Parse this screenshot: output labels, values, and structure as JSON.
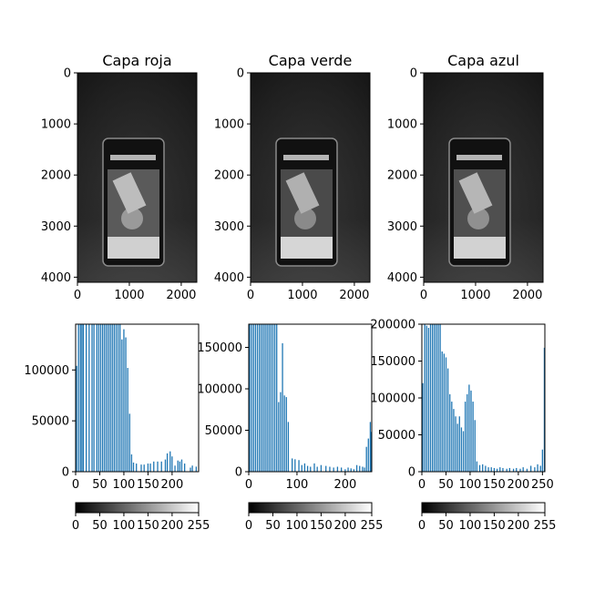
{
  "panels": [
    {
      "title": "Capa roja"
    },
    {
      "title": "Capa verde"
    },
    {
      "title": "Capa azul"
    }
  ],
  "colors": {
    "bar": "#1f77b4",
    "axis": "#000000",
    "background": "#ffffff",
    "photo_dark": "#1a1a1a",
    "photo_light": "#d9d9d9"
  },
  "chart_data": [
    {
      "type": "image",
      "title": "Capa roja",
      "xlim": [
        0,
        2300
      ],
      "ylim": [
        4100,
        0
      ],
      "xticks": [
        "0",
        "1000",
        "2000"
      ],
      "yticks": [
        "0",
        "1000",
        "2000",
        "3000",
        "4000"
      ],
      "xtick_values": [
        0,
        1000,
        2000
      ],
      "ytick_values": [
        0,
        1000,
        2000,
        3000,
        4000
      ]
    },
    {
      "type": "image",
      "title": "Capa verde",
      "xlim": [
        0,
        2300
      ],
      "ylim": [
        4100,
        0
      ],
      "xticks": [
        "0",
        "1000",
        "2000"
      ],
      "yticks": [
        "0",
        "1000",
        "2000",
        "3000",
        "4000"
      ],
      "xtick_values": [
        0,
        1000,
        2000
      ],
      "ytick_values": [
        0,
        1000,
        2000,
        3000,
        4000
      ]
    },
    {
      "type": "image",
      "title": "Capa azul",
      "xlim": [
        0,
        2300
      ],
      "ylim": [
        4100,
        0
      ],
      "xticks": [
        "0",
        "1000",
        "2000"
      ],
      "yticks": [
        "0",
        "1000",
        "2000",
        "3000",
        "4000"
      ],
      "xtick_values": [
        0,
        1000,
        2000
      ],
      "ytick_values": [
        0,
        1000,
        2000,
        3000,
        4000
      ]
    },
    {
      "type": "bar",
      "xlim": [
        0,
        255
      ],
      "ylim": [
        0,
        145000
      ],
      "xticks": [
        "0",
        "50",
        "100",
        "150",
        "200"
      ],
      "xtick_values": [
        0,
        50,
        100,
        150,
        200
      ],
      "yticks": [
        "0",
        "50000",
        "100000"
      ],
      "ytick_values": [
        0,
        50000,
        100000
      ],
      "x": [
        2,
        6,
        10,
        13,
        16,
        22,
        28,
        34,
        38,
        44,
        48,
        52,
        56,
        60,
        64,
        68,
        72,
        76,
        80,
        84,
        88,
        92,
        96,
        100,
        104,
        108,
        112,
        116,
        120,
        126,
        136,
        142,
        150,
        155,
        162,
        170,
        178,
        186,
        190,
        196,
        200,
        206,
        212,
        216,
        220,
        226,
        238,
        242,
        250
      ],
      "values": [
        104000,
        145000,
        145000,
        145000,
        145000,
        145000,
        145000,
        145000,
        145000,
        145000,
        145000,
        145000,
        145000,
        145000,
        145000,
        145000,
        145000,
        145000,
        145000,
        145000,
        145000,
        145000,
        130000,
        140000,
        132000,
        102000,
        57000,
        17000,
        9000,
        8000,
        7000,
        7000,
        8000,
        8000,
        10000,
        10000,
        10000,
        12000,
        18000,
        20000,
        15000,
        6000,
        11000,
        10000,
        12000,
        8000,
        4000,
        6000,
        5000
      ]
    },
    {
      "type": "bar",
      "xlim": [
        0,
        255
      ],
      "ylim": [
        0,
        178000
      ],
      "xticks": [
        "0",
        "100",
        "200"
      ],
      "xtick_values": [
        0,
        100,
        200
      ],
      "yticks": [
        "0",
        "50000",
        "100000",
        "150000"
      ],
      "ytick_values": [
        0,
        50000,
        100000,
        150000
      ],
      "x": [
        2,
        6,
        10,
        14,
        18,
        22,
        26,
        30,
        34,
        38,
        42,
        46,
        50,
        54,
        58,
        62,
        66,
        70,
        74,
        78,
        82,
        90,
        96,
        104,
        110,
        116,
        122,
        128,
        136,
        142,
        150,
        160,
        168,
        176,
        184,
        192,
        200,
        206,
        212,
        218,
        224,
        230,
        236,
        240,
        244,
        248,
        252,
        254
      ],
      "values": [
        178000,
        178000,
        178000,
        178000,
        178000,
        178000,
        178000,
        178000,
        178000,
        178000,
        178000,
        178000,
        178000,
        178000,
        178000,
        84000,
        96000,
        155000,
        92000,
        90000,
        60000,
        16000,
        15000,
        14000,
        8000,
        10000,
        7000,
        6000,
        10000,
        6000,
        8000,
        7000,
        6000,
        5000,
        6000,
        5000,
        3000,
        5000,
        4000,
        3000,
        8000,
        7000,
        6000,
        5000,
        30000,
        40000,
        60000,
        48000
      ]
    },
    {
      "type": "bar",
      "xlim": [
        0,
        255
      ],
      "ylim": [
        0,
        200000
      ],
      "xticks": [
        "0",
        "50",
        "100",
        "150",
        "200",
        "250"
      ],
      "xtick_values": [
        0,
        50,
        100,
        150,
        200,
        250
      ],
      "yticks": [
        "0",
        "50000",
        "100000",
        "150000",
        "200000"
      ],
      "ytick_values": [
        0,
        50000,
        100000,
        150000,
        200000
      ],
      "x": [
        2,
        6,
        10,
        14,
        18,
        22,
        26,
        30,
        34,
        38,
        42,
        46,
        50,
        54,
        58,
        62,
        66,
        70,
        74,
        78,
        82,
        86,
        90,
        94,
        98,
        102,
        106,
        110,
        114,
        120,
        126,
        132,
        138,
        144,
        150,
        156,
        162,
        168,
        176,
        182,
        190,
        196,
        204,
        210,
        218,
        226,
        234,
        240,
        246,
        250,
        254
      ],
      "values": [
        120000,
        200000,
        198000,
        195000,
        200000,
        200000,
        200000,
        200000,
        200000,
        200000,
        163000,
        160000,
        155000,
        140000,
        105000,
        95000,
        85000,
        75000,
        65000,
        75000,
        60000,
        55000,
        95000,
        105000,
        118000,
        110000,
        95000,
        70000,
        14000,
        9000,
        10000,
        8000,
        6000,
        6000,
        5000,
        4000,
        6000,
        5000,
        4000,
        5000,
        4000,
        5000,
        4000,
        6000,
        4000,
        8000,
        6000,
        10000,
        8000,
        30000,
        168000
      ]
    },
    {
      "type": "colorbar",
      "cmap": "gray",
      "range": [
        0,
        255
      ],
      "ticks": [
        "0",
        "50",
        "100",
        "150",
        "200",
        "255"
      ],
      "tick_values": [
        0,
        50,
        100,
        150,
        200,
        255
      ]
    },
    {
      "type": "colorbar",
      "cmap": "gray",
      "range": [
        0,
        255
      ],
      "ticks": [
        "0",
        "50",
        "100",
        "150",
        "200",
        "255"
      ],
      "tick_values": [
        0,
        50,
        100,
        150,
        200,
        255
      ]
    },
    {
      "type": "colorbar",
      "cmap": "gray",
      "range": [
        0,
        255
      ],
      "ticks": [
        "0",
        "50",
        "100",
        "150",
        "200",
        "255"
      ],
      "tick_values": [
        0,
        50,
        100,
        150,
        200,
        255
      ]
    }
  ]
}
